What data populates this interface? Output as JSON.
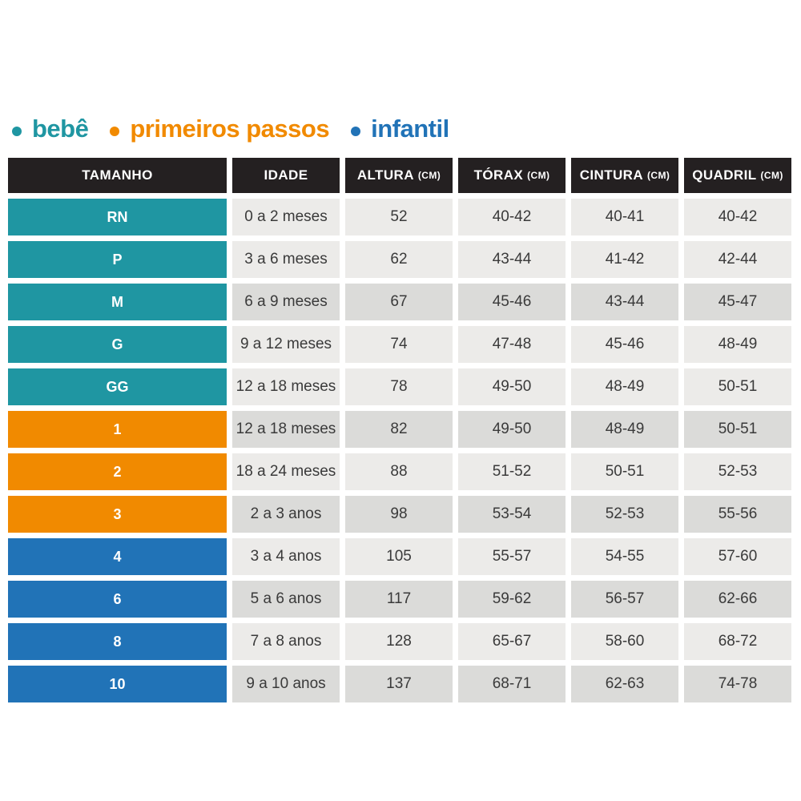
{
  "legend": {
    "items": [
      {
        "id": "bebe",
        "label": "bebê",
        "color": "#1f96a2"
      },
      {
        "id": "primeiros-passos",
        "label": "primeiros passos",
        "color": "#f18a00"
      },
      {
        "id": "infantil",
        "label": "infantil",
        "color": "#2173b7"
      }
    ]
  },
  "colors": {
    "header_bg": "#242021",
    "header_text": "#ffffff",
    "cell_light": "#ecebe9",
    "cell_dark": "#dbdbd9",
    "cell_text": "#3a3a3a",
    "group_bebe": "#1f96a2",
    "group_primeiros_passos": "#f18a00",
    "group_infantil": "#2173b7"
  },
  "table": {
    "headers": [
      {
        "label": "TAMANHO",
        "unit": ""
      },
      {
        "label": "IDADE",
        "unit": ""
      },
      {
        "label": "ALTURA",
        "unit": "(CM)"
      },
      {
        "label": "TÓRAX",
        "unit": "(CM)"
      },
      {
        "label": "CINTURA",
        "unit": "(CM)"
      },
      {
        "label": "QUADRIL",
        "unit": "(CM)"
      }
    ],
    "rows": [
      {
        "size": "RN",
        "group": "bebe",
        "shade": "light",
        "idade": "0 a 2 meses",
        "altura": "52",
        "torax": "40-42",
        "cintura": "40-41",
        "quadril": "40-42"
      },
      {
        "size": "P",
        "group": "bebe",
        "shade": "light",
        "idade": "3 a 6 meses",
        "altura": "62",
        "torax": "43-44",
        "cintura": "41-42",
        "quadril": "42-44"
      },
      {
        "size": "M",
        "group": "bebe",
        "shade": "dark",
        "idade": "6 a 9 meses",
        "altura": "67",
        "torax": "45-46",
        "cintura": "43-44",
        "quadril": "45-47"
      },
      {
        "size": "G",
        "group": "bebe",
        "shade": "light",
        "idade": "9 a 12 meses",
        "altura": "74",
        "torax": "47-48",
        "cintura": "45-46",
        "quadril": "48-49"
      },
      {
        "size": "GG",
        "group": "bebe",
        "shade": "light",
        "idade": "12 a 18 meses",
        "altura": "78",
        "torax": "49-50",
        "cintura": "48-49",
        "quadril": "50-51"
      },
      {
        "size": "1",
        "group": "primeiros-passos",
        "shade": "dark",
        "idade": "12 a 18 meses",
        "altura": "82",
        "torax": "49-50",
        "cintura": "48-49",
        "quadril": "50-51"
      },
      {
        "size": "2",
        "group": "primeiros-passos",
        "shade": "light",
        "idade": "18 a 24 meses",
        "altura": "88",
        "torax": "51-52",
        "cintura": "50-51",
        "quadril": "52-53"
      },
      {
        "size": "3",
        "group": "primeiros-passos",
        "shade": "dark",
        "idade": "2 a 3 anos",
        "altura": "98",
        "torax": "53-54",
        "cintura": "52-53",
        "quadril": "55-56"
      },
      {
        "size": "4",
        "group": "infantil",
        "shade": "light",
        "idade": "3 a 4 anos",
        "altura": "105",
        "torax": "55-57",
        "cintura": "54-55",
        "quadril": "57-60"
      },
      {
        "size": "6",
        "group": "infantil",
        "shade": "dark",
        "idade": "5 a 6 anos",
        "altura": "117",
        "torax": "59-62",
        "cintura": "56-57",
        "quadril": "62-66"
      },
      {
        "size": "8",
        "group": "infantil",
        "shade": "light",
        "idade": "7 a 8 anos",
        "altura": "128",
        "torax": "65-67",
        "cintura": "58-60",
        "quadril": "68-72"
      },
      {
        "size": "10",
        "group": "infantil",
        "shade": "dark",
        "idade": "9 a 10 anos",
        "altura": "137",
        "torax": "68-71",
        "cintura": "62-63",
        "quadril": "74-78"
      }
    ]
  },
  "chart_data": {
    "type": "table",
    "title": "",
    "legend_entries": [
      "bebê",
      "primeiros passos",
      "infantil"
    ],
    "columns": [
      "TAMANHO",
      "IDADE",
      "ALTURA (CM)",
      "TÓRAX (CM)",
      "CINTURA (CM)",
      "QUADRIL (CM)"
    ],
    "rows": [
      [
        "RN",
        "0 a 2 meses",
        "52",
        "40-42",
        "40-41",
        "40-42"
      ],
      [
        "P",
        "3 a 6 meses",
        "62",
        "43-44",
        "41-42",
        "42-44"
      ],
      [
        "M",
        "6 a 9 meses",
        "67",
        "45-46",
        "43-44",
        "45-47"
      ],
      [
        "G",
        "9 a 12 meses",
        "74",
        "47-48",
        "45-46",
        "48-49"
      ],
      [
        "GG",
        "12 a 18 meses",
        "78",
        "49-50",
        "48-49",
        "50-51"
      ],
      [
        "1",
        "12 a 18 meses",
        "82",
        "49-50",
        "48-49",
        "50-51"
      ],
      [
        "2",
        "18 a 24 meses",
        "88",
        "51-52",
        "50-51",
        "52-53"
      ],
      [
        "3",
        "2 a 3 anos",
        "98",
        "53-54",
        "52-53",
        "55-56"
      ],
      [
        "4",
        "3 a 4 anos",
        "105",
        "55-57",
        "54-55",
        "57-60"
      ],
      [
        "6",
        "5 a 6 anos",
        "117",
        "59-62",
        "56-57",
        "62-66"
      ],
      [
        "8",
        "7 a 8 anos",
        "128",
        "65-67",
        "58-60",
        "68-72"
      ],
      [
        "10",
        "9 a 10 anos",
        "137",
        "68-71",
        "62-63",
        "74-78"
      ]
    ],
    "row_groups": [
      "bebê",
      "bebê",
      "bebê",
      "bebê",
      "bebê",
      "primeiros passos",
      "primeiros passos",
      "primeiros passos",
      "infantil",
      "infantil",
      "infantil",
      "infantil"
    ]
  }
}
